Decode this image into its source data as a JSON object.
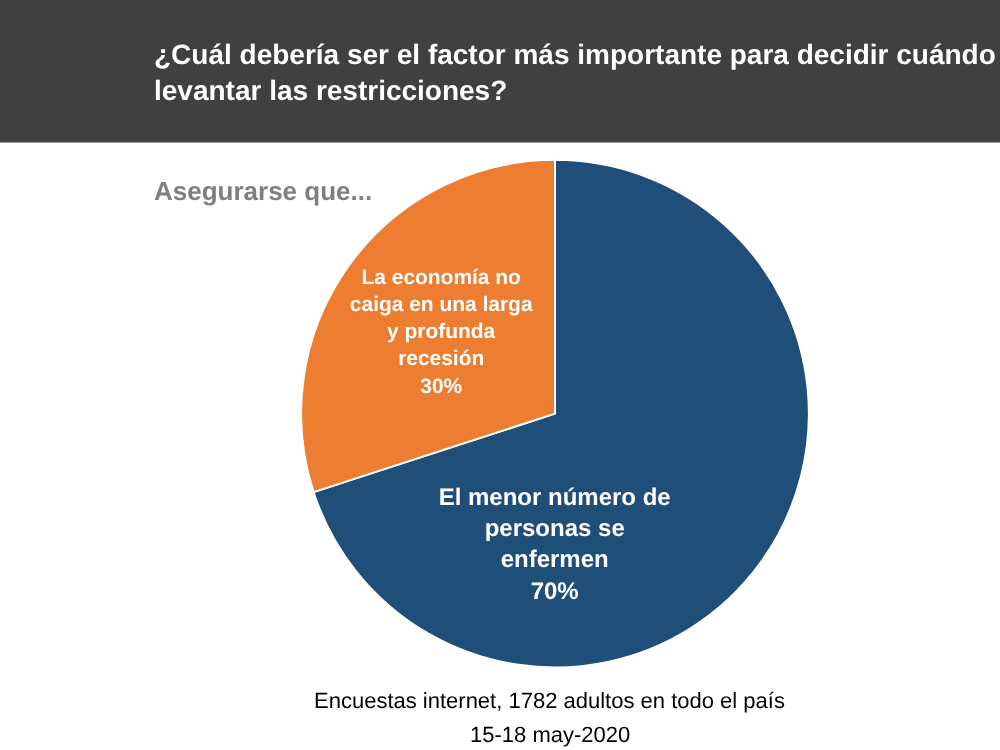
{
  "chart_data": {
    "type": "pie",
    "title": "¿Cuál debería ser el factor más importante para decidir cuándo levantar las restricciones?",
    "subtitle": "Asegurarse que...",
    "categories": [
      "El menor número de personas se enfermen",
      "La economía no caiga en una larga y profunda recesión"
    ],
    "values": [
      70,
      30
    ],
    "colors": [
      "#1f4e79",
      "#ed7d31"
    ],
    "value_labels": [
      "70%",
      "30%"
    ],
    "legend": false,
    "annotations": [
      "Encuestas internet, 1782 adultos en todo el país",
      "15-18 may-2020"
    ]
  }
}
